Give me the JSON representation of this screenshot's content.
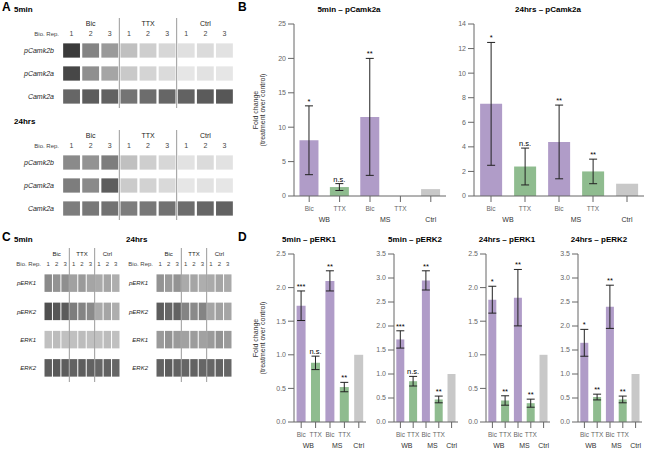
{
  "chart_data": [
    {
      "type": "heatmap",
      "panel_label": "A",
      "title": "5min",
      "x_label": "Bio. Rep.",
      "categories": [
        "1",
        "2",
        "3",
        "1",
        "2",
        "3",
        "1",
        "2",
        "3"
      ],
      "groups": [
        "Bic",
        "Bic",
        "Bic",
        "TTX",
        "TTX",
        "TTX",
        "Ctrl",
        "Ctrl",
        "Ctrl"
      ],
      "rows": [
        "pCamk2b",
        "pCamk2a",
        "Camk2a"
      ],
      "cells": [
        [
          0.88,
          0.55,
          0.45,
          0.28,
          0.22,
          0.18,
          0.14,
          0.16,
          0.13
        ],
        [
          0.82,
          0.5,
          0.4,
          0.24,
          0.19,
          0.16,
          0.11,
          0.13,
          0.11
        ],
        [
          0.68,
          0.72,
          0.7,
          0.62,
          0.65,
          0.68,
          0.7,
          0.73,
          0.75
        ]
      ]
    },
    {
      "type": "heatmap",
      "title": "24hrs",
      "x_label": "Bio. Rep.",
      "categories": [
        "1",
        "2",
        "3",
        "1",
        "2",
        "3",
        "1",
        "2",
        "3"
      ],
      "groups": [
        "Bic",
        "Bic",
        "Bic",
        "TTX",
        "TTX",
        "TTX",
        "Ctrl",
        "Ctrl",
        "Ctrl"
      ],
      "rows": [
        "pCamk2b",
        "pCamk2a",
        "Camk2a"
      ],
      "cells": [
        [
          0.52,
          0.48,
          0.58,
          0.28,
          0.22,
          0.18,
          0.13,
          0.16,
          0.13
        ],
        [
          0.58,
          0.52,
          0.72,
          0.23,
          0.2,
          0.17,
          0.11,
          0.13,
          0.11
        ],
        [
          0.58,
          0.6,
          0.63,
          0.58,
          0.6,
          0.63,
          0.65,
          0.68,
          0.7
        ]
      ]
    },
    {
      "type": "bar",
      "panel_label": "B",
      "title": "5min – pCamk2a",
      "y_label": "Fold change\n(treatment over control)",
      "categories": [
        "Bic",
        "TTX",
        "Bic",
        "TTX",
        null
      ],
      "groups": [
        "WB",
        "WB",
        "MS",
        "MS",
        "Ctrl"
      ],
      "values": [
        8.1,
        1.3,
        11.5,
        0.0,
        1.0
      ],
      "errors": [
        5.0,
        0.5,
        8.5,
        0.0,
        0.0
      ],
      "colors": [
        "#b09cc8",
        "#8fbc8f",
        "#b09cc8",
        "#8fbc8f",
        "#c8c8c8"
      ],
      "annotations": [
        "*",
        "n.s.",
        "**",
        null,
        null
      ],
      "ylim": [
        0,
        25
      ],
      "yticks": [
        0,
        5,
        10,
        15,
        20,
        25
      ]
    },
    {
      "type": "bar",
      "title": "24hrs – pCamk2a",
      "categories": [
        "Bic",
        "TTX",
        "Bic",
        "TTX",
        null
      ],
      "groups": [
        "WB",
        "WB",
        "MS",
        "MS",
        "Ctrl"
      ],
      "values": [
        7.5,
        2.4,
        4.4,
        2.0,
        1.0
      ],
      "errors": [
        5.0,
        1.5,
        3.0,
        1.0,
        0.0
      ],
      "colors": [
        "#b09cc8",
        "#8fbc8f",
        "#b09cc8",
        "#8fbc8f",
        "#c8c8c8"
      ],
      "annotations": [
        "*",
        "n.s.",
        "**",
        "**",
        null
      ],
      "ylim": [
        0,
        14
      ],
      "yticks": [
        0,
        2,
        4,
        6,
        8,
        10,
        12,
        14
      ]
    },
    {
      "type": "heatmap",
      "panel_label": "C",
      "title": "5min",
      "x_label": "Bio. Rep.",
      "categories": [
        "1",
        "2",
        "3",
        "1",
        "2",
        "3",
        "1",
        "2",
        "3"
      ],
      "groups": [
        "Bic",
        "Bic",
        "Bic",
        "TTX",
        "TTX",
        "TTX",
        "Ctrl",
        "Ctrl",
        "Ctrl"
      ],
      "rows": [
        "pERK1",
        "pERK2",
        "ERK1",
        "ERK2"
      ],
      "cells": [
        [
          0.52,
          0.48,
          0.5,
          0.42,
          0.45,
          0.4,
          0.38,
          0.4,
          0.36
        ],
        [
          0.78,
          0.75,
          0.73,
          0.58,
          0.55,
          0.52,
          0.38,
          0.4,
          0.36
        ],
        [
          0.28,
          0.3,
          0.28,
          0.28,
          0.3,
          0.28,
          0.28,
          0.3,
          0.28
        ],
        [
          0.72,
          0.74,
          0.72,
          0.7,
          0.72,
          0.7,
          0.68,
          0.7,
          0.68
        ]
      ]
    },
    {
      "type": "heatmap",
      "title": "24hrs",
      "x_label": "Bio. Rep.",
      "categories": [
        "1",
        "2",
        "3",
        "1",
        "2",
        "3",
        "1",
        "2",
        "3"
      ],
      "groups": [
        "Bic",
        "Bic",
        "Bic",
        "TTX",
        "TTX",
        "TTX",
        "Ctrl",
        "Ctrl",
        "Ctrl"
      ],
      "rows": [
        "pERK1",
        "pERK2",
        "ERK1",
        "ERK2"
      ],
      "cells": [
        [
          0.48,
          0.45,
          0.48,
          0.38,
          0.4,
          0.36,
          0.38,
          0.4,
          0.38
        ],
        [
          0.72,
          0.68,
          0.7,
          0.55,
          0.52,
          0.55,
          0.4,
          0.42,
          0.4
        ],
        [
          0.45,
          0.48,
          0.45,
          0.42,
          0.44,
          0.42,
          0.45,
          0.48,
          0.45
        ],
        [
          0.7,
          0.72,
          0.7,
          0.68,
          0.7,
          0.68,
          0.68,
          0.7,
          0.68
        ]
      ]
    },
    {
      "type": "bar",
      "panel_label": "D",
      "title": "5min – pERK1",
      "y_label": "Fold change\n(treatment over control)",
      "categories": [
        "Bic",
        "TTX",
        "Bic",
        "TTX",
        null
      ],
      "groups": [
        "WB",
        "WB",
        "MS",
        "MS",
        "Ctrl"
      ],
      "values": [
        1.73,
        0.88,
        2.1,
        0.52,
        1.0
      ],
      "errors": [
        0.22,
        0.1,
        0.15,
        0.07,
        0.0
      ],
      "colors": [
        "#b09cc8",
        "#8fbc8f",
        "#b09cc8",
        "#8fbc8f",
        "#c8c8c8"
      ],
      "annotations": [
        "***",
        "n.s.",
        "**",
        "**",
        null
      ],
      "ylim": [
        0,
        2.5
      ],
      "yticks": [
        {
          "value": 0,
          "label": "0.0"
        },
        {
          "value": 0.5,
          "label": "0.5"
        },
        {
          "value": 1.0,
          "label": "1.0"
        },
        {
          "value": 1.5,
          "label": "1.5"
        },
        {
          "value": 2.0,
          "label": "2.0"
        },
        {
          "value": 2.5,
          "label": "2.5"
        }
      ]
    },
    {
      "type": "bar",
      "title": "5min – pERK2",
      "categories": [
        "Bic",
        "TTX",
        "Bic",
        "TTX",
        null
      ],
      "groups": [
        "WB",
        "WB",
        "MS",
        "MS",
        "Ctrl"
      ],
      "values": [
        1.72,
        0.85,
        2.95,
        0.47,
        1.0
      ],
      "errors": [
        0.18,
        0.1,
        0.2,
        0.07,
        0.0
      ],
      "colors": [
        "#b09cc8",
        "#8fbc8f",
        "#b09cc8",
        "#8fbc8f",
        "#c8c8c8"
      ],
      "annotations": [
        "***",
        "n.s.",
        "**",
        "**",
        null
      ],
      "ylim": [
        0,
        3.5
      ],
      "yticks": [
        {
          "value": 0,
          "label": "0.0"
        },
        {
          "value": 0.5,
          "label": "0.5"
        },
        {
          "value": 1.0,
          "label": "1.0"
        },
        {
          "value": 1.5,
          "label": "1.5"
        },
        {
          "value": 2.0,
          "label": "2.0"
        },
        {
          "value": 2.5,
          "label": "2.5"
        },
        {
          "value": 3.0,
          "label": "3.0"
        },
        {
          "value": 3.5,
          "label": "3.5"
        }
      ]
    },
    {
      "type": "bar",
      "title": "24hrs – pERK1",
      "categories": [
        "Bic",
        "TTX",
        "Bic",
        "TTX",
        null
      ],
      "groups": [
        "WB",
        "WB",
        "MS",
        "MS",
        "Ctrl"
      ],
      "values": [
        1.82,
        0.32,
        1.85,
        0.28,
        1.0
      ],
      "errors": [
        0.2,
        0.07,
        0.42,
        0.06,
        0.0
      ],
      "colors": [
        "#b09cc8",
        "#8fbc8f",
        "#b09cc8",
        "#8fbc8f",
        "#c8c8c8"
      ],
      "annotations": [
        "*",
        "**",
        "**",
        "**",
        null
      ],
      "ylim": [
        0,
        2.5
      ],
      "yticks": [
        {
          "value": 0,
          "label": "0.0"
        },
        {
          "value": 0.5,
          "label": "0.5"
        },
        {
          "value": 1.0,
          "label": "1.0"
        },
        {
          "value": 1.5,
          "label": "1.5"
        },
        {
          "value": 2.0,
          "label": "2.0"
        },
        {
          "value": 2.5,
          "label": "2.5"
        }
      ]
    },
    {
      "type": "bar",
      "title": "24hrs – pERK2",
      "categories": [
        "Bic",
        "TTX",
        "Bic",
        "TTX",
        null
      ],
      "groups": [
        "WB",
        "WB",
        "MS",
        "MS",
        "Ctrl"
      ],
      "values": [
        1.65,
        0.52,
        2.4,
        0.47,
        1.0
      ],
      "errors": [
        0.28,
        0.06,
        0.45,
        0.07,
        0.0
      ],
      "colors": [
        "#b09cc8",
        "#8fbc8f",
        "#b09cc8",
        "#8fbc8f",
        "#c8c8c8"
      ],
      "annotations": [
        "*",
        "**",
        "**",
        "**",
        null
      ],
      "ylim": [
        0,
        3.5
      ],
      "yticks": [
        {
          "value": 0,
          "label": "0.0"
        },
        {
          "value": 0.5,
          "label": "0.5"
        },
        {
          "value": 1.0,
          "label": "1.0"
        },
        {
          "value": 1.5,
          "label": "1.5"
        },
        {
          "value": 2.0,
          "label": "2.0"
        },
        {
          "value": 2.5,
          "label": "2.5"
        },
        {
          "value": 3.0,
          "label": "3.0"
        },
        {
          "value": 3.5,
          "label": "3.5"
        }
      ]
    }
  ]
}
